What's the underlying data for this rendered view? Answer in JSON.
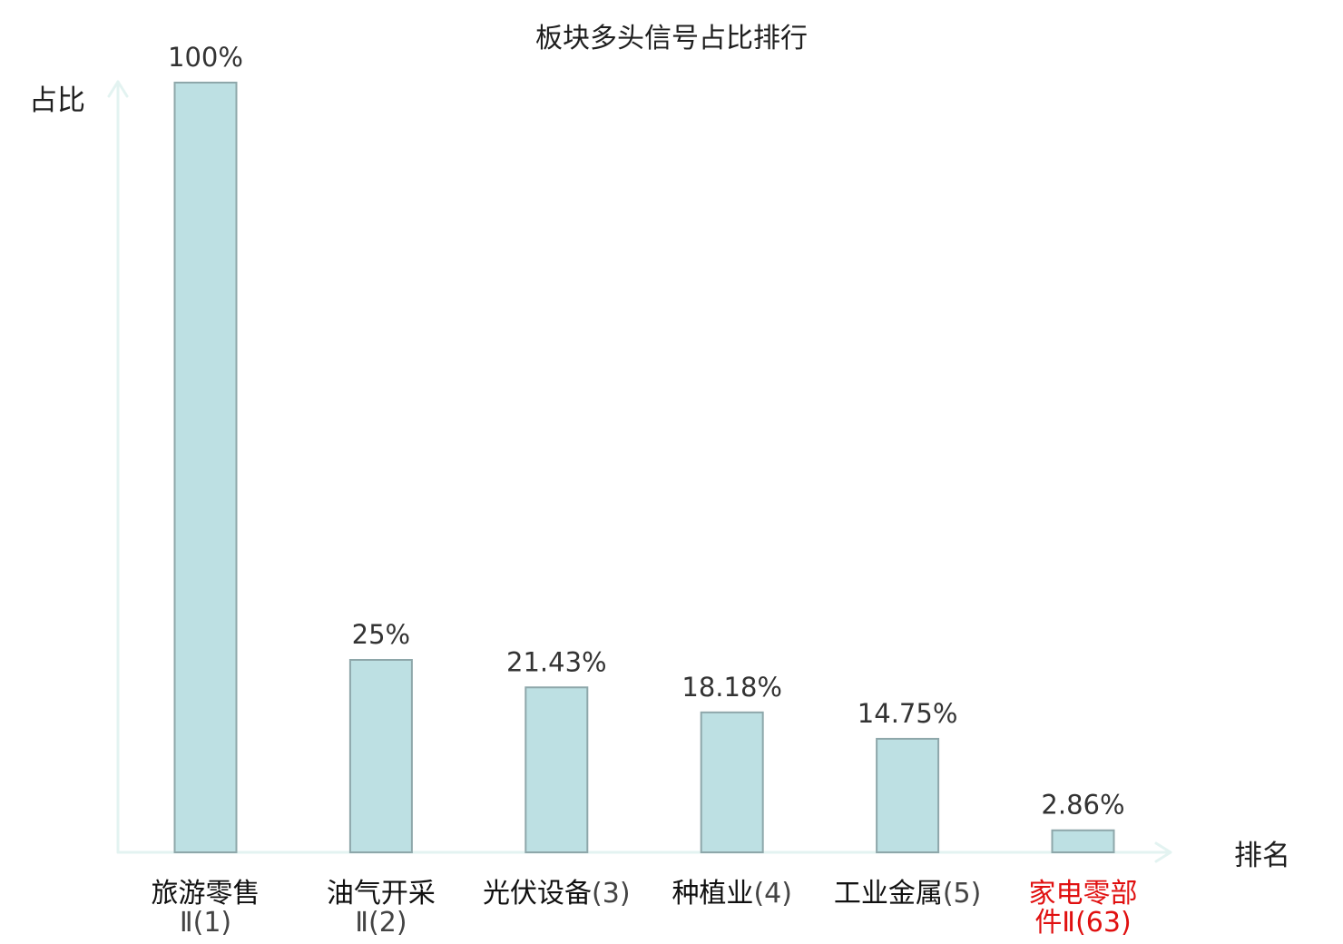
{
  "chart_data": {
    "type": "bar",
    "title": "板块多头信号占比排行",
    "xlabel": "排名",
    "ylabel": "占比",
    "ylim": [
      0,
      100
    ],
    "grid": false,
    "legend": "none",
    "colors": {
      "bar_fill": "#bde0e3",
      "bar_stroke": "#8ea7aa",
      "axis": "#e3f3f1",
      "text": "#1f1f1f",
      "value_text": "#333333",
      "tick_cn": "#111111",
      "tick_rank": "#444444",
      "highlight": "#e01010"
    },
    "categories": [
      {
        "name_lines": [
          "旅游零售",
          "Ⅱ"
        ],
        "rank": "(1)",
        "label": "旅游零售Ⅱ(1)",
        "value": 100,
        "value_label": "100%",
        "highlight": false
      },
      {
        "name_lines": [
          "油气开采",
          "Ⅱ"
        ],
        "rank": "(2)",
        "label": "油气开采Ⅱ(2)",
        "value": 25,
        "value_label": "25%",
        "highlight": false
      },
      {
        "name_lines": [
          "光伏设备"
        ],
        "rank": "(3)",
        "label": "光伏设备(3)",
        "value": 21.43,
        "value_label": "21.43%",
        "highlight": false
      },
      {
        "name_lines": [
          "种植业"
        ],
        "rank": "(4)",
        "label": "种植业(4)",
        "value": 18.18,
        "value_label": "18.18%",
        "highlight": false
      },
      {
        "name_lines": [
          "工业金属"
        ],
        "rank": "(5)",
        "label": "工业金属(5)",
        "value": 14.75,
        "value_label": "14.75%",
        "highlight": false
      },
      {
        "name_lines": [
          "家电零部",
          "件Ⅱ"
        ],
        "rank": "(63)",
        "label": "家电零部件Ⅱ(63)",
        "value": 2.86,
        "value_label": "2.86%",
        "highlight": true
      }
    ]
  }
}
